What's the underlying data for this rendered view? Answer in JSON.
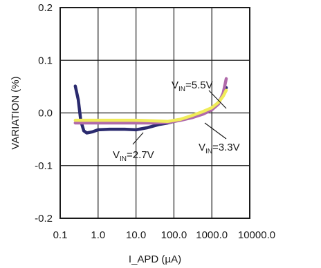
{
  "chart_data": {
    "type": "line",
    "xlabel": "I_APD (µA)",
    "ylabel": "VARIATION (%)",
    "xscale": "log",
    "xlim": [
      0.1,
      10000
    ],
    "ylim": [
      -0.2,
      0.2
    ],
    "x_ticks": [
      "0.1",
      "1.0",
      "10.0",
      "100.0",
      "1000.0",
      "10000.0"
    ],
    "y_ticks": [
      "-0.2",
      "-0.1",
      "0.0",
      "0.1",
      "0.2"
    ],
    "grid": true,
    "legend": "none",
    "series": [
      {
        "label_text": "V",
        "label_sub": "IN",
        "label_rest": "=2.7V",
        "color": "#2a2a6e",
        "points": [
          [
            0.25,
            0.051
          ],
          [
            0.3,
            0.025
          ],
          [
            0.35,
            -0.015
          ],
          [
            0.42,
            -0.034
          ],
          [
            0.5,
            -0.038
          ],
          [
            0.7,
            -0.036
          ],
          [
            1.0,
            -0.032
          ],
          [
            2.0,
            -0.031
          ],
          [
            5.0,
            -0.031
          ],
          [
            10.0,
            -0.032
          ],
          [
            20.0,
            -0.028
          ],
          [
            40.0,
            -0.022
          ],
          [
            70.0,
            -0.019
          ],
          [
            150.0,
            -0.013
          ],
          [
            300.0,
            -0.006
          ],
          [
            600.0,
            0.001
          ],
          [
            1000.0,
            0.009
          ],
          [
            1500.0,
            0.02
          ],
          [
            2000.0,
            0.035
          ],
          [
            2400.0,
            0.048
          ]
        ]
      },
      {
        "label_text": "V",
        "label_sub": "IN",
        "label_rest": "=3.3V",
        "color": "#b06aaa",
        "points": [
          [
            0.25,
            -0.019
          ],
          [
            0.5,
            -0.019
          ],
          [
            1.0,
            -0.019
          ],
          [
            3.0,
            -0.019
          ],
          [
            10.0,
            -0.019
          ],
          [
            30.0,
            -0.019
          ],
          [
            70.0,
            -0.018
          ],
          [
            150.0,
            -0.014
          ],
          [
            300.0,
            -0.009
          ],
          [
            600.0,
            -0.002
          ],
          [
            1000.0,
            0.006
          ],
          [
            1500.0,
            0.017
          ],
          [
            2000.0,
            0.038
          ],
          [
            2400.0,
            0.065
          ]
        ]
      },
      {
        "label_text": "V",
        "label_sub": "IN",
        "label_rest": "=5.5V",
        "color": "#f0ec5a",
        "points": [
          [
            0.25,
            -0.014
          ],
          [
            0.5,
            -0.014
          ],
          [
            1.0,
            -0.014
          ],
          [
            3.0,
            -0.014
          ],
          [
            10.0,
            -0.014
          ],
          [
            30.0,
            -0.015
          ],
          [
            70.0,
            -0.016
          ],
          [
            150.0,
            -0.012
          ],
          [
            300.0,
            -0.005
          ],
          [
            600.0,
            0.003
          ],
          [
            1000.0,
            0.01
          ],
          [
            1500.0,
            0.02
          ],
          [
            2000.0,
            0.032
          ],
          [
            2400.0,
            0.043
          ]
        ]
      }
    ]
  }
}
